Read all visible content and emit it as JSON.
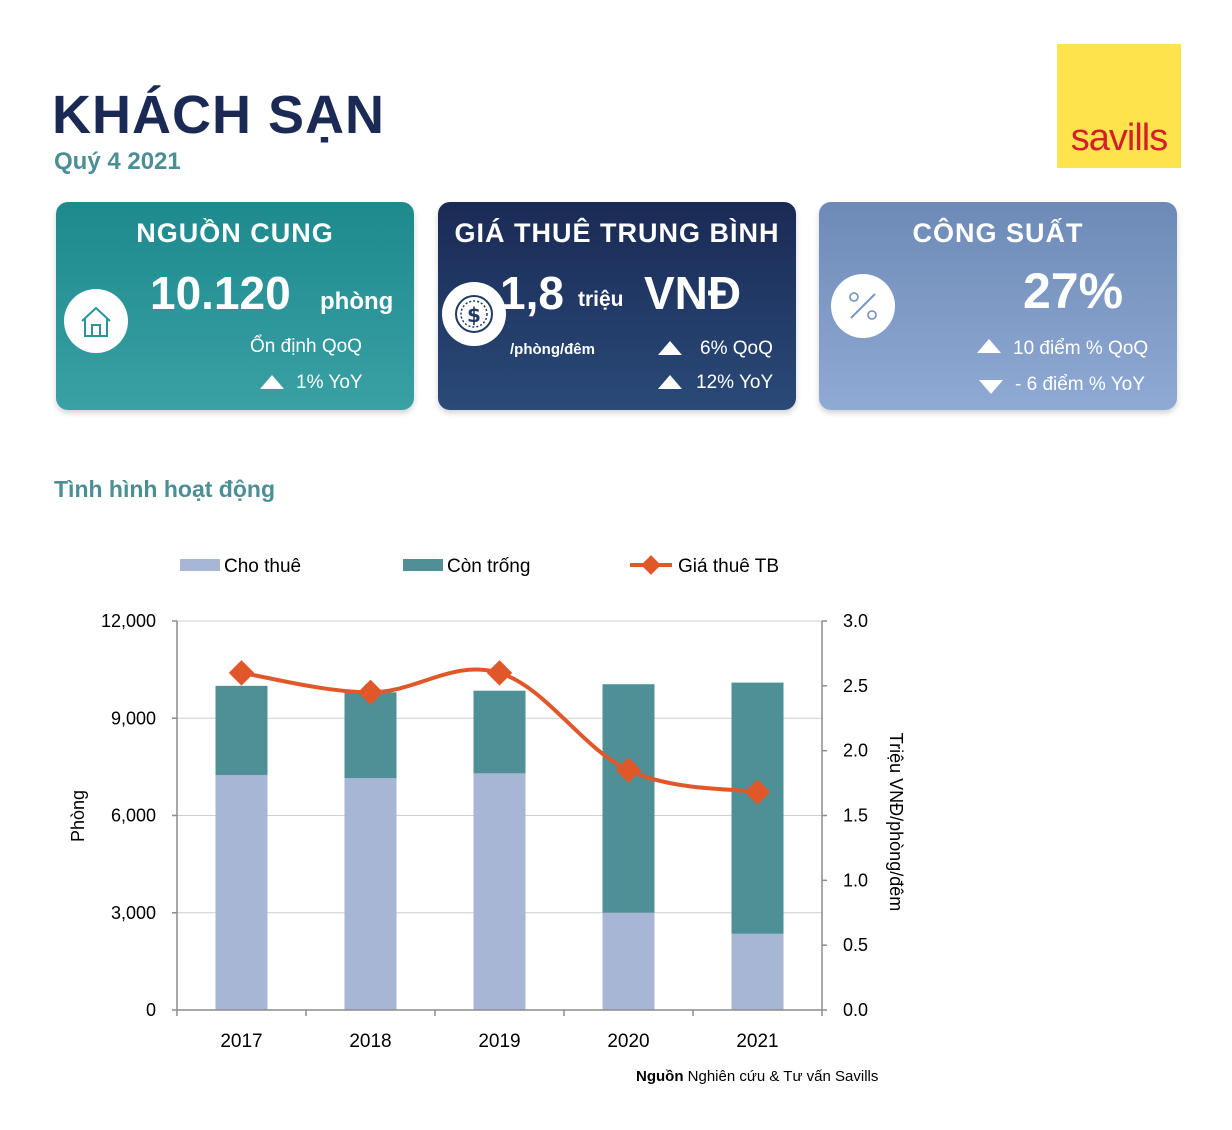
{
  "header": {
    "title": "KHÁCH SẠN",
    "subtitle": "Quý 4 2021",
    "logo_text": "savills"
  },
  "cards": {
    "supply": {
      "title": "NGUỒN CUNG",
      "value": "10.120",
      "unit": "phòng",
      "note_qoq": "Ổn định QoQ",
      "yoy": "1% YoY",
      "icon": "house-icon",
      "color": "#2a9599"
    },
    "price": {
      "title": "GIÁ THUÊ TRUNG BÌNH",
      "value": "1,8",
      "unit_small": "triệu",
      "unit_big": "VNĐ",
      "per": "/phòng/đêm",
      "qoq": "6% QoQ",
      "yoy": "12% YoY",
      "icon": "dollar-coin-icon",
      "color": "#1f3a66"
    },
    "occupancy": {
      "title": "CÔNG SUẤT",
      "value": "27%",
      "qoq": "10 điểm % QoQ",
      "yoy": "- 6 điểm % YoY",
      "icon": "percent-icon",
      "color": "#7c99c5"
    }
  },
  "section_title": "Tình hình hoạt động",
  "source": {
    "label": "Nguồn",
    "text": " Nghiên cứu & Tư vấn Savills"
  },
  "chart_data": {
    "type": "bar",
    "stacked": true,
    "categories": [
      "2017",
      "2018",
      "2019",
      "2020",
      "2021"
    ],
    "series": [
      {
        "name": "Cho thuê",
        "type": "bar",
        "axis": "left",
        "color": "#a6b6d4",
        "values": [
          7250,
          7150,
          7300,
          3000,
          2350
        ]
      },
      {
        "name": "Còn trống",
        "type": "bar",
        "axis": "left",
        "color": "#4e9096",
        "values": [
          2750,
          2650,
          2550,
          7050,
          7750
        ]
      },
      {
        "name": "Giá thuê TB",
        "type": "line",
        "axis": "right",
        "color": "#e0582a",
        "values": [
          2.6,
          2.45,
          2.6,
          1.85,
          1.68
        ]
      }
    ],
    "ylabel": "Phòng",
    "y2label": "Triệu VNĐ/phòng/đêm",
    "ylim": [
      0,
      12000
    ],
    "y2lim": [
      0,
      3.0
    ],
    "yticks": [
      "0",
      "3,000",
      "6,000",
      "9,000",
      "12,000"
    ],
    "y2ticks": [
      "0.0",
      "0.5",
      "1.0",
      "1.5",
      "2.0",
      "2.5",
      "3.0"
    ],
    "grid": true,
    "legend": "top"
  }
}
